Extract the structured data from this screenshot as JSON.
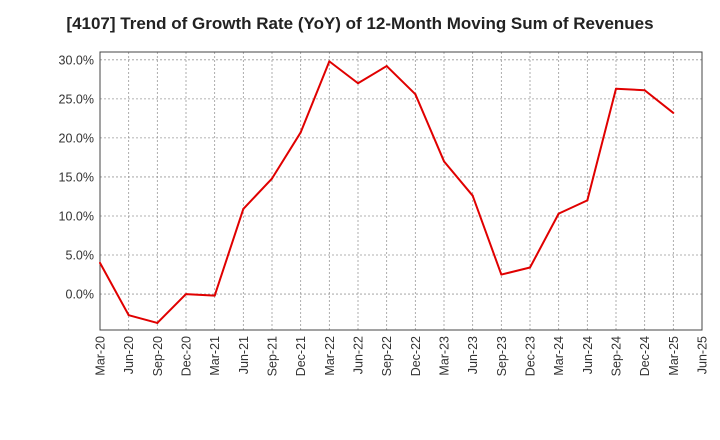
{
  "chart_data": {
    "type": "line",
    "title": "[4107]  Trend of Growth Rate (YoY) of 12-Month Moving Sum of Revenues",
    "xlabel": "",
    "ylabel": "",
    "categories": [
      "Mar-20",
      "Jun-20",
      "Sep-20",
      "Dec-20",
      "Mar-21",
      "Jun-21",
      "Sep-21",
      "Dec-21",
      "Mar-22",
      "Jun-22",
      "Sep-22",
      "Dec-22",
      "Mar-23",
      "Jun-23",
      "Sep-23",
      "Dec-23",
      "Mar-24",
      "Jun-24",
      "Sep-24",
      "Dec-24",
      "Mar-25",
      "Jun-25"
    ],
    "series": [
      {
        "color": "#e00000",
        "values": [
          4.0,
          -2.7,
          -3.7,
          0.0,
          -0.2,
          10.9,
          14.8,
          20.7,
          29.8,
          27.0,
          29.2,
          25.6,
          17.0,
          12.6,
          2.5,
          3.4,
          10.3,
          12.0,
          26.3,
          26.1,
          23.2,
          null
        ]
      }
    ],
    "yticks": [
      "30.0%",
      "25.0%",
      "20.0%",
      "15.0%",
      "10.0%",
      "5.0%",
      "0.0%"
    ],
    "ytick_values": [
      30,
      25,
      20,
      15,
      10,
      5,
      0
    ],
    "ylim": [
      -4.6,
      31.0
    ],
    "grid": true,
    "legend": "none"
  }
}
